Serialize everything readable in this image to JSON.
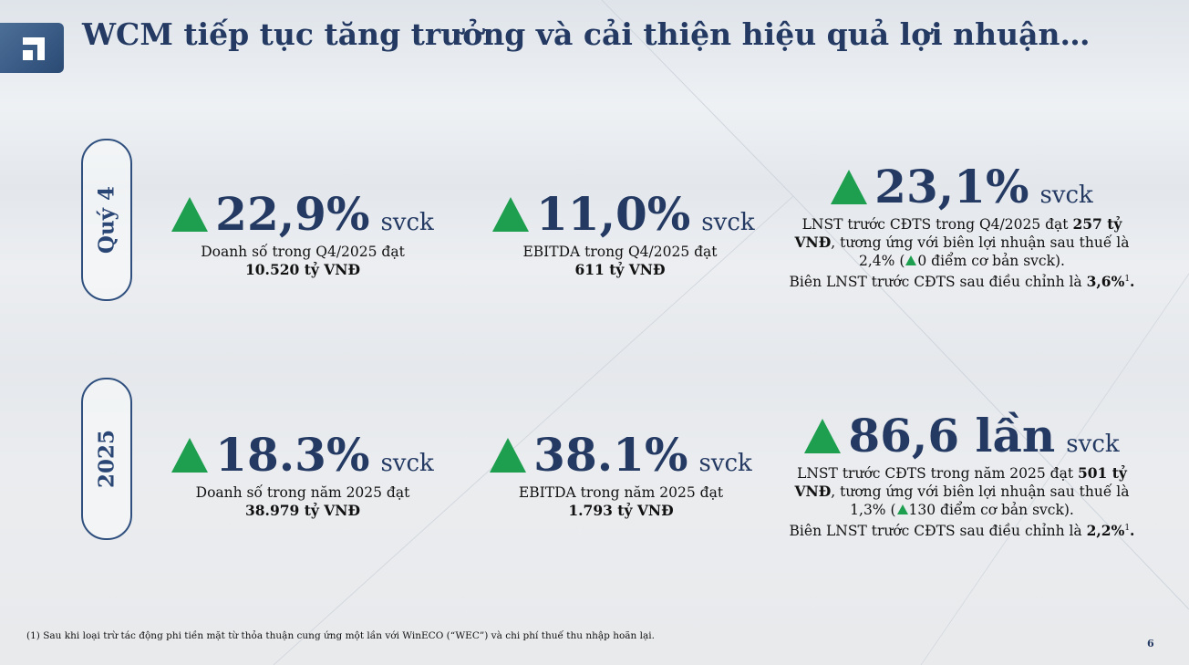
{
  "title": "WCM tiếp tục tăng trưởng và cải thiện hiệu quả lợi nhuận…",
  "accent_color": "#243a63",
  "up_color": "#1e9f4f",
  "rows": [
    {
      "label": "Quý 4",
      "metrics": [
        {
          "value": "22,9%",
          "suffix": "svck",
          "desc_line1": "Doanh số trong Q4/2025 đạt",
          "desc_line2": "10.520 tỷ VNĐ"
        },
        {
          "value": "11,0%",
          "suffix": "svck",
          "desc_line1": "EBITDA trong Q4/2025 đạt",
          "desc_line2": "611 tỷ VNĐ"
        },
        {
          "value": "23,1%",
          "suffix": "svck",
          "l1_text": "LNST trước CĐTS trong Q4/2025 đạt ",
          "l1_bold": "257 tỷ",
          "l2_bold": "VNĐ",
          "l2_text": ", tương ứng với biên lợi nhuận sau thuế là",
          "l3_pre": "2,4% (",
          "l3_post": "0 điểm cơ bản svck).",
          "l4_text": "Biên LNST trước CĐTS sau điều chỉnh là ",
          "l4_bold": "3,6%",
          "l4_sup": "1",
          "l4_end": "."
        }
      ]
    },
    {
      "label": "2025",
      "metrics": [
        {
          "value": "18.3%",
          "suffix": "svck",
          "desc_line1": "Doanh số trong năm 2025 đạt",
          "desc_line2": "38.979 tỷ VNĐ"
        },
        {
          "value": "38.1%",
          "suffix": "svck",
          "desc_line1": "EBITDA trong năm 2025 đạt",
          "desc_line2": "1.793 tỷ VNĐ"
        },
        {
          "value": "86,6 lần",
          "suffix": "svck",
          "l1_text": "LNST trước CĐTS trong năm 2025 đạt ",
          "l1_bold": "501 tỷ",
          "l2_bold": "VNĐ",
          "l2_text": ", tương ứng với biên lợi nhuận sau thuế là",
          "l3_pre": "1,3% (",
          "l3_post": "130 điểm cơ bản svck).",
          "l4_text": "Biên LNST trước CĐTS sau điều chỉnh là ",
          "l4_bold": "2,2%",
          "l4_sup": "1",
          "l4_end": "."
        }
      ]
    }
  ],
  "footnote": "(1) Sau khi loại trừ tác động phi tiền mặt từ thỏa thuận cung ứng một lần với WinECO (“WEC”) và chi phí thuế thu nhập hoãn lại.",
  "page_number": "6"
}
